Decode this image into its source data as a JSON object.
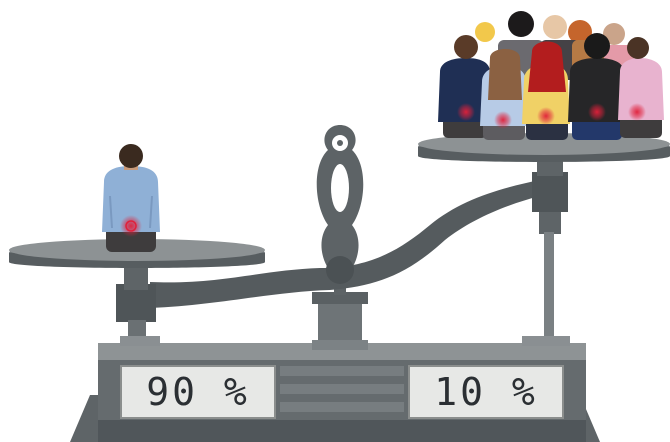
{
  "displays": {
    "left_reading": "90 %",
    "right_reading": "10 %"
  },
  "colors": {
    "scale_dark": "#555b5e",
    "scale_mid": "#7a7f82",
    "scale_light": "#9ea3a5",
    "display_bg": "#e7e8e6",
    "pain_marker": "#e0203a"
  },
  "figures": {
    "left_pan_people": 1,
    "right_pan_people": 11
  }
}
